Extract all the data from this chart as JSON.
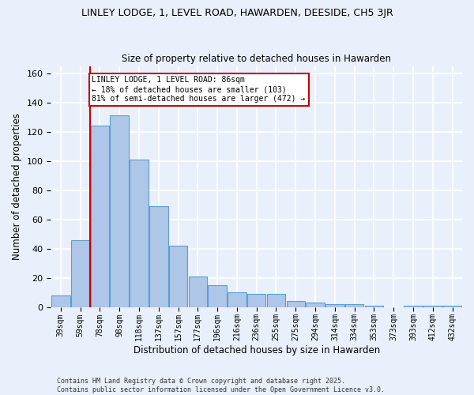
{
  "title": "LINLEY LODGE, 1, LEVEL ROAD, HAWARDEN, DEESIDE, CH5 3JR",
  "subtitle": "Size of property relative to detached houses in Hawarden",
  "xlabel": "Distribution of detached houses by size in Hawarden",
  "ylabel": "Number of detached properties",
  "categories": [
    "39sqm",
    "59sqm",
    "78sqm",
    "98sqm",
    "118sqm",
    "137sqm",
    "157sqm",
    "177sqm",
    "196sqm",
    "216sqm",
    "236sqm",
    "255sqm",
    "275sqm",
    "294sqm",
    "314sqm",
    "334sqm",
    "353sqm",
    "373sqm",
    "393sqm",
    "412sqm",
    "432sqm"
  ],
  "values": [
    8,
    46,
    124,
    131,
    101,
    69,
    42,
    21,
    15,
    10,
    9,
    9,
    4,
    3,
    2,
    2,
    1,
    0,
    1,
    1,
    1
  ],
  "bar_color": "#aec6e8",
  "bar_edge_color": "#5a9fd4",
  "red_line_x": 1.5,
  "red_line_label": "LINLEY LODGE, 1 LEVEL ROAD: 86sqm",
  "annotation_line2": "← 18% of detached houses are smaller (103)",
  "annotation_line3": "81% of semi-detached houses are larger (472) →",
  "annotation_box_color": "#ffffff",
  "annotation_box_edge": "#cc0000",
  "annotation_text_color": "#000000",
  "vline_color": "#cc0000",
  "ylim": [
    0,
    165
  ],
  "yticks": [
    0,
    20,
    40,
    60,
    80,
    100,
    120,
    140,
    160
  ],
  "background_color": "#eaf0fb",
  "grid_color": "#ffffff",
  "footer_line1": "Contains HM Land Registry data © Crown copyright and database right 2025.",
  "footer_line2": "Contains public sector information licensed under the Open Government Licence v3.0."
}
